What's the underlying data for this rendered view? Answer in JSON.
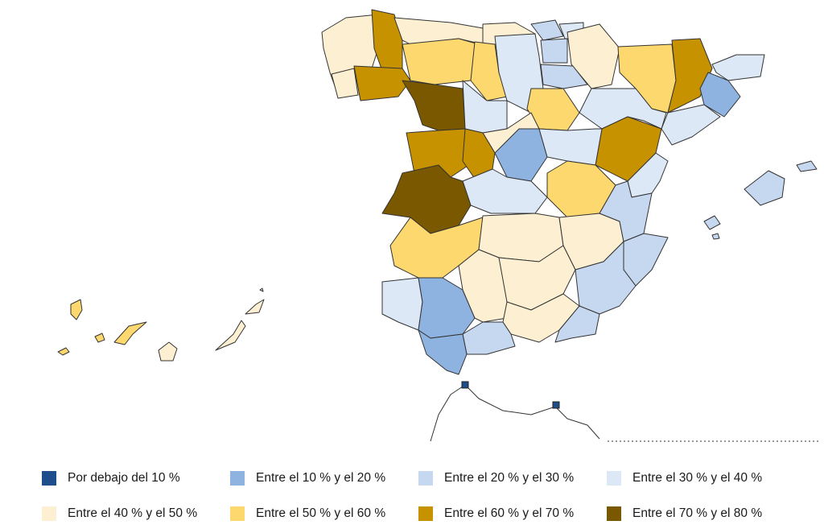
{
  "legend": [
    {
      "label": "Por debajo del 10 %",
      "color": "#1f4e8c"
    },
    {
      "label": "Entre el 10 % y el 20 %",
      "color": "#8fb3e0"
    },
    {
      "label": "Entre el 20 % y el 30 %",
      "color": "#c6d7f0"
    },
    {
      "label": "Entre el 30 % y el 40 %",
      "color": "#dde8f6"
    },
    {
      "label": "Entre el 40 % y el 50 %",
      "color": "#fdf0d2"
    },
    {
      "label": "Entre el 50 % y el 60 %",
      "color": "#fdd86e"
    },
    {
      "label": "Entre el 60 % y el 70 %",
      "color": "#c79200"
    },
    {
      "label": "Entre el 70 % y el 80 %",
      "color": "#7a5800"
    }
  ]
}
